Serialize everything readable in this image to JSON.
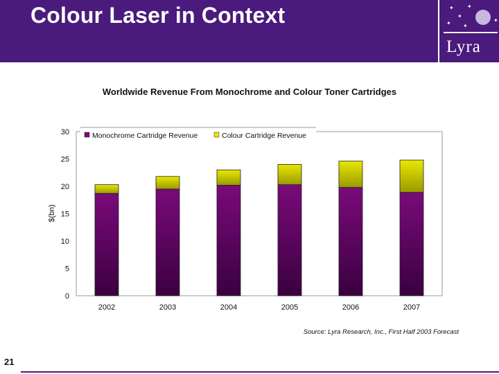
{
  "slide": {
    "title": "Colour Laser in Context",
    "logo_text": "Lyra",
    "source": "Source: Lyra Research, Inc., First Half 2003 Forecast",
    "page_number": "21"
  },
  "colors": {
    "brand": "#4a1a7c",
    "mono": "#7a0a7a",
    "colour": "#e8e800"
  },
  "chart_data": {
    "type": "bar",
    "stacked": true,
    "title": "Worldwide Revenue From Monochrome and Colour Toner Cartridges",
    "xlabel": "",
    "ylabel": "$(bn)",
    "ylim": [
      0,
      30
    ],
    "yticks": [
      0,
      5,
      10,
      15,
      20,
      25,
      30
    ],
    "categories": [
      "2002",
      "2003",
      "2004",
      "2005",
      "2006",
      "2007"
    ],
    "series": [
      {
        "name": "Monochrome Cartridge Revenue",
        "values": [
          18.7,
          19.5,
          20.2,
          20.3,
          19.8,
          18.9
        ]
      },
      {
        "name": "Colour Cartridge Revenue",
        "values": [
          1.6,
          2.3,
          2.8,
          3.7,
          4.8,
          5.9
        ]
      }
    ],
    "legend_position": "top"
  }
}
